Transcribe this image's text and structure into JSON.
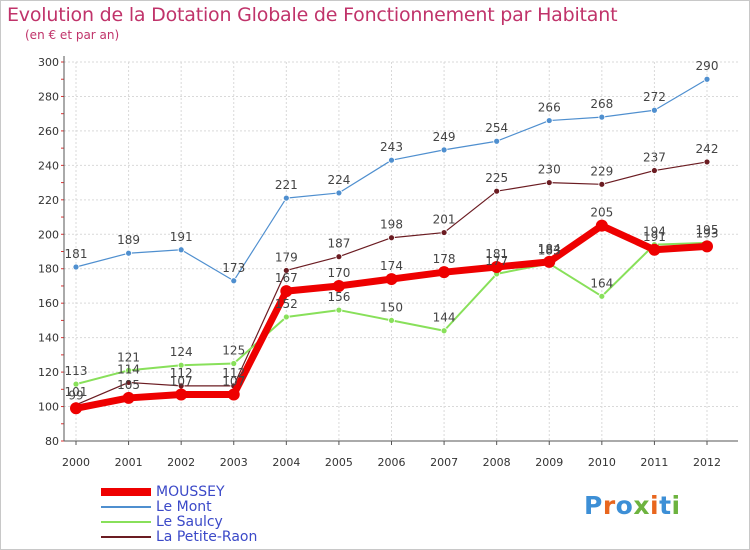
{
  "header": {
    "title": "Evolution de la Dotation Globale de Fonctionnement par Habitant",
    "subtitle": "(en € et par an)"
  },
  "logo": {
    "text": "Proxiti",
    "letter_colors": [
      "#3d8fd6",
      "#e8661e",
      "#3d8fd6",
      "#6db33f",
      "#e8661e",
      "#3d8fd6",
      "#6db33f"
    ]
  },
  "chart_data": {
    "type": "line",
    "title": "Evolution de la Dotation Globale de Fonctionnement par Habitant",
    "subtitle": "(en € et par an)",
    "xlabel": "",
    "ylabel": "",
    "x": [
      "2000",
      "2001",
      "2002",
      "2003",
      "2004",
      "2005",
      "2006",
      "2007",
      "2008",
      "2009",
      "2010",
      "2011",
      "2012"
    ],
    "ylim": [
      80,
      300
    ],
    "yticks": [
      "80",
      "100",
      "120",
      "140",
      "160",
      "180",
      "200",
      "220",
      "240",
      "260",
      "280",
      "300"
    ],
    "grid": true,
    "legend_position": "bottom-left",
    "series": [
      {
        "name": "MOUSSEY",
        "color": "#ee0000",
        "values": [
          99,
          105,
          107,
          107,
          167,
          170,
          174,
          178,
          181,
          184,
          205,
          191,
          193
        ]
      },
      {
        "name": "Le Mont",
        "color": "#4f8fcf",
        "values": [
          181,
          189,
          191,
          173,
          221,
          224,
          243,
          249,
          254,
          266,
          268,
          272,
          290
        ]
      },
      {
        "name": "Le Saulcy",
        "color": "#88e05a",
        "values": [
          113,
          121,
          124,
          125,
          152,
          156,
          150,
          144,
          177,
          183,
          164,
          194,
          195
        ]
      },
      {
        "name": "La Petite-Raon",
        "color": "#6b1c22",
        "values": [
          101,
          114,
          112,
          112,
          179,
          187,
          198,
          201,
          225,
          230,
          229,
          237,
          242
        ]
      }
    ],
    "labels": [
      [
        "99",
        "105",
        "107",
        "107",
        "167",
        "170",
        "174",
        "178",
        "181",
        "184",
        "205",
        "191",
        "193"
      ],
      [
        "181",
        "189",
        "191",
        "173",
        "221",
        "224",
        "243",
        "249",
        "254",
        "266",
        "268",
        "272",
        "290"
      ],
      [
        "113",
        "121",
        "124",
        "125",
        "152",
        "156",
        "150",
        "144",
        "177",
        "183",
        "164",
        "194",
        "195"
      ],
      [
        "101",
        "114",
        "112",
        "112",
        "179",
        "187",
        "198",
        "201",
        "225",
        "230",
        "229",
        "237",
        "242"
      ]
    ]
  }
}
